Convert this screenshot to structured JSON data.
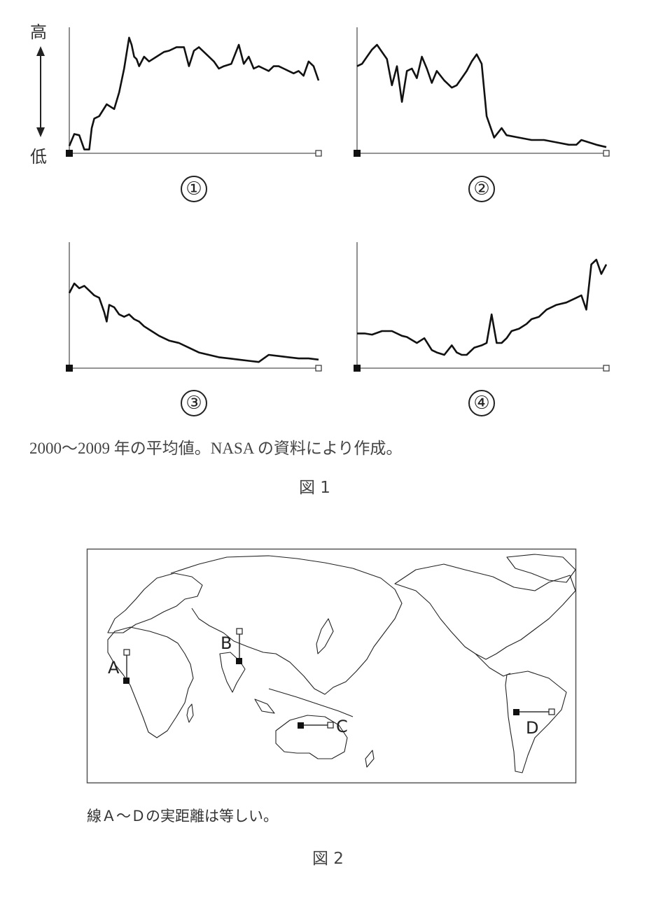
{
  "figure1": {
    "y_axis": {
      "high_label": "高",
      "low_label": "低"
    },
    "panels": [
      {
        "label": "①"
      },
      {
        "label": "②"
      },
      {
        "label": "③"
      },
      {
        "label": "④"
      }
    ],
    "caption": "2000～2009 年の平均値。NASA の資料により作成。",
    "title": "図 1"
  },
  "figure2": {
    "markers": [
      {
        "letter": "A"
      },
      {
        "letter": "B"
      },
      {
        "letter": "C"
      },
      {
        "letter": "D"
      }
    ],
    "note": "線Ａ～Ｄの実距離は等しい。",
    "title": "図 2"
  },
  "chart_data": [
    {
      "type": "line",
      "panel": "①",
      "title": "",
      "xlabel": "■ (start) → □ (end) along line",
      "ylabel": "低 → 高",
      "x": [
        0,
        2,
        4,
        6,
        8,
        9,
        10,
        12,
        15,
        18,
        20,
        22,
        24,
        25,
        26,
        27,
        28,
        30,
        32,
        35,
        38,
        40,
        43,
        46,
        48,
        50,
        52,
        55,
        58,
        60,
        62,
        65,
        68,
        70,
        72,
        74,
        76,
        78,
        80,
        82,
        84,
        86,
        88,
        90,
        92,
        94,
        96,
        98,
        100
      ],
      "values": [
        5,
        15,
        14,
        2,
        2,
        20,
        28,
        30,
        40,
        36,
        50,
        70,
        96,
        90,
        80,
        78,
        72,
        80,
        76,
        80,
        84,
        85,
        88,
        88,
        72,
        85,
        88,
        82,
        76,
        70,
        72,
        74,
        90,
        74,
        80,
        70,
        72,
        70,
        68,
        72,
        72,
        70,
        68,
        66,
        68,
        64,
        76,
        72,
        60
      ],
      "ylim": [
        0,
        100
      ],
      "grid": false,
      "legend": "none"
    },
    {
      "type": "line",
      "panel": "②",
      "title": "",
      "xlabel": "■ (start) → □ (end) along line",
      "ylabel": "低 → 高",
      "x": [
        0,
        2,
        4,
        6,
        8,
        10,
        12,
        14,
        16,
        18,
        20,
        22,
        24,
        26,
        28,
        30,
        32,
        35,
        38,
        40,
        42,
        44,
        46,
        48,
        50,
        52,
        55,
        58,
        60,
        65,
        70,
        75,
        80,
        85,
        88,
        90,
        93,
        96,
        100
      ],
      "values": [
        72,
        74,
        80,
        86,
        90,
        84,
        78,
        56,
        72,
        42,
        68,
        70,
        62,
        80,
        70,
        58,
        68,
        60,
        54,
        56,
        62,
        68,
        76,
        82,
        74,
        30,
        12,
        20,
        14,
        12,
        10,
        10,
        8,
        6,
        6,
        10,
        8,
        6,
        4
      ],
      "ylim": [
        0,
        100
      ],
      "grid": false,
      "legend": "none"
    },
    {
      "type": "line",
      "panel": "③",
      "title": "",
      "xlabel": "■ (start) → □ (end) along line",
      "ylabel": "低 → 高",
      "x": [
        0,
        2,
        4,
        6,
        8,
        10,
        12,
        14,
        15,
        16,
        18,
        20,
        22,
        24,
        26,
        28,
        30,
        33,
        36,
        40,
        44,
        48,
        52,
        56,
        60,
        64,
        68,
        72,
        76,
        80,
        84,
        88,
        92,
        96,
        100
      ],
      "values": [
        62,
        70,
        66,
        68,
        64,
        60,
        58,
        46,
        38,
        52,
        50,
        44,
        42,
        44,
        40,
        38,
        34,
        30,
        26,
        22,
        20,
        16,
        12,
        10,
        8,
        7,
        6,
        5,
        4,
        10,
        9,
        8,
        7,
        7,
        6
      ],
      "ylim": [
        0,
        100
      ],
      "grid": false,
      "legend": "none"
    },
    {
      "type": "line",
      "panel": "④",
      "title": "",
      "xlabel": "■ (start) → □ (end) along line",
      "ylabel": "低 → 高",
      "x": [
        0,
        3,
        6,
        10,
        14,
        18,
        20,
        24,
        27,
        30,
        32,
        35,
        38,
        40,
        42,
        44,
        47,
        50,
        52,
        54,
        56,
        58,
        60,
        62,
        65,
        68,
        70,
        73,
        76,
        80,
        84,
        88,
        90,
        92,
        94,
        96,
        98,
        100
      ],
      "values": [
        28,
        28,
        27,
        30,
        30,
        26,
        25,
        20,
        24,
        14,
        12,
        10,
        18,
        12,
        10,
        10,
        16,
        18,
        20,
        44,
        20,
        20,
        24,
        30,
        32,
        36,
        40,
        42,
        48,
        52,
        54,
        58,
        60,
        48,
        86,
        90,
        78,
        86
      ],
      "ylim": [
        0,
        100
      ],
      "grid": false,
      "legend": "none"
    }
  ]
}
